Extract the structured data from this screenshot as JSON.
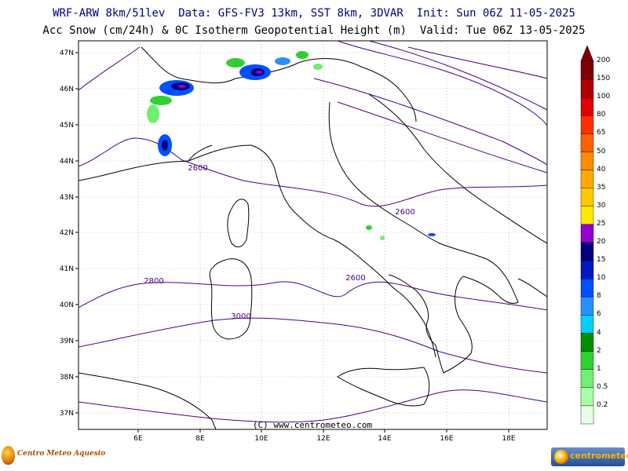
{
  "header": {
    "line1": "WRF-ARW 8km/51lev  Data: GFS-FV3 13km, SST 8km, 3DVAR  Init: Sun 06Z 11-05-2025",
    "line2": "Acc Snow (cm/24h) & 0C Isotherm Geopotential Height (m)  Valid: Tue 06Z 13-05-2025"
  },
  "map": {
    "lat_labels": [
      "47N",
      "46N",
      "45N",
      "44N",
      "43N",
      "42N",
      "41N",
      "40N",
      "39N",
      "38N",
      "37N"
    ],
    "lon_labels": [
      "6E",
      "8E",
      "10E",
      "12E",
      "14E",
      "16E",
      "18E"
    ],
    "contour_labels": [
      "2600",
      "2600",
      "2600",
      "2800",
      "3000"
    ],
    "copyright": "(C) www.centrometeo.com",
    "colors": {
      "coast": "#000000",
      "isotherm": "#4b0082",
      "grid": "#808080"
    }
  },
  "colorbar": {
    "levels": [
      "200",
      "150",
      "100",
      "80",
      "65",
      "50",
      "40",
      "35",
      "30",
      "25",
      "20",
      "15",
      "10",
      "8",
      "6",
      "4",
      "2",
      "1",
      "0.5",
      "0.2"
    ],
    "colors": [
      "#800000",
      "#b00000",
      "#e00000",
      "#ff3000",
      "#ff6000",
      "#ff8c00",
      "#ffa800",
      "#ffc800",
      "#ffe800",
      "#9400d3",
      "#000080",
      "#0018c0",
      "#0050ff",
      "#2890ff",
      "#00d0ff",
      "#009000",
      "#30d030",
      "#70f070",
      "#a8ffa8",
      "#e6ffe6"
    ]
  },
  "logos": {
    "left": "Centro Meteo Aquesio",
    "right_a": "centro",
    "right_b": "meteo"
  }
}
